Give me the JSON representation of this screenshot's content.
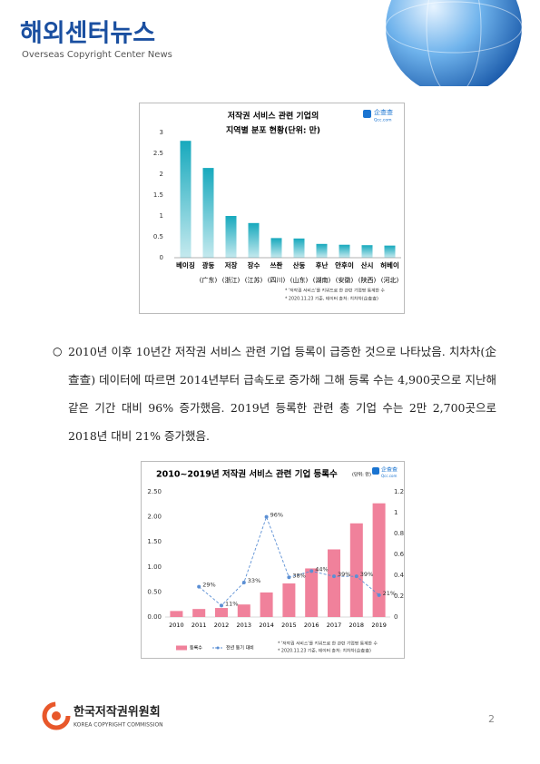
{
  "header": {
    "title": "해외센터뉴스",
    "subtitle": "Overseas Copyright Center News"
  },
  "chart_data": [
    {
      "type": "bar",
      "title": "저작권 서비스 관련 기업의",
      "subtitle": "지역별 분포 현황(단위: 만)",
      "logo": {
        "name": "企查查",
        "site": "Qcc.com"
      },
      "categories": [
        "베이징",
        "광둥",
        "저장",
        "장수",
        "쓰촨",
        "산둥",
        "후난",
        "안후이",
        "산시",
        "허베이"
      ],
      "sub_categories": [
        null,
        "(广东)",
        "(浙江)",
        "(江苏)",
        "(四川)",
        "(山东)",
        "(湖南)",
        "(安徽)",
        "(陕西)",
        "(河北)"
      ],
      "values": [
        2.8,
        2.15,
        1.0,
        0.83,
        0.47,
        0.46,
        0.33,
        0.31,
        0.3,
        0.29
      ],
      "color": "#17a9bd",
      "ylim": [
        0,
        3
      ],
      "yticks": [
        0,
        0.5,
        1,
        1.5,
        2,
        2.5,
        3
      ],
      "grid": false,
      "notes": [
        "* '저작권 서비스'를 키워드로 한 관련 기업명 통계한 수",
        "* 2020.11.23 기준, 데이터 출처: 치차차(企查查)"
      ]
    },
    {
      "type": "bar",
      "title": "2010~2019년 저작권 서비스 관련 기업 등록수",
      "unit": "(단위: 만)",
      "logo": {
        "name": "企查查",
        "site": "Qcc.com"
      },
      "categories": [
        "2010",
        "2011",
        "2012",
        "2013",
        "2014",
        "2015",
        "2016",
        "2017",
        "2018",
        "2019"
      ],
      "series": [
        {
          "name": "등록수",
          "color": "#f0819b",
          "values": [
            0.12,
            0.16,
            0.18,
            0.25,
            0.49,
            0.67,
            0.97,
            1.35,
            1.87,
            2.27
          ]
        },
        {
          "name": "전년 동기 대비",
          "color": "#5b8fd4",
          "axis": "y2",
          "type": "line",
          "values": [
            null,
            0.29,
            0.11,
            0.33,
            0.96,
            0.38,
            0.44,
            0.39,
            0.39,
            0.21
          ],
          "value_labels": [
            null,
            "29%",
            "11%",
            "33%",
            "96%",
            "38%",
            "44%",
            "39%",
            "39%",
            "21%"
          ]
        }
      ],
      "ylim": [
        0,
        2.5
      ],
      "yticks": [
        {
          "value": 0,
          "label": "0.00"
        },
        {
          "value": 0.5,
          "label": "0.50"
        },
        {
          "value": 1,
          "label": "1.00"
        },
        {
          "value": 1.5,
          "label": "1.50"
        },
        {
          "value": 2,
          "label": "2.00"
        },
        {
          "value": 2.5,
          "label": "2.50"
        }
      ],
      "y2lim": [
        0,
        1.2
      ],
      "y2ticks": [
        0,
        0.2,
        0.4,
        0.6,
        0.8,
        1,
        1.2
      ],
      "grid": false,
      "notes": [
        "* '저작권 서비스'를 키워드로 한 관련 기업명 통계한 수",
        "* 2020.11.23 기준, 데이터 출처: 치차차(企查查)"
      ]
    }
  ],
  "paragraph": "2010년 이후 10년간 저작권 서비스 관련 기업 등록이 급증한 것으로 나타났음. 치차차(企查查) 데이터에 따르면 2014년부터 급속도로 증가해 그해 등록 수는 4,900곳으로 지난해 같은 기간 대비 96% 증가했음. 2019년 등록한 관련 총 기업 수는 2만 2,700곳으로 2018년 대비 21% 증가했음.",
  "footer": {
    "org": "한국저작권위원회",
    "org_en": "KOREA COPYRIGHT COMMISSION",
    "page": "2"
  }
}
